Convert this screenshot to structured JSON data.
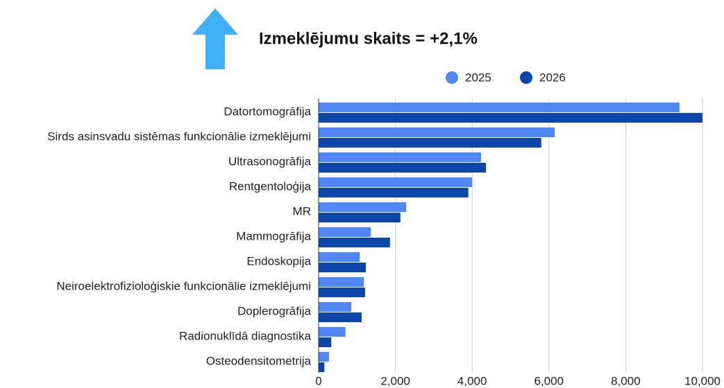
{
  "chart_data": {
    "type": "bar",
    "orientation": "horizontal",
    "title": "Izmeklējumu skaits = +2,1%",
    "categories": [
      "Datortomogrāfija",
      "Sirds asinsvadu sistēmas funkcionālie izmeklējumi",
      "Ultrasonogrāfija",
      "Rentgentoloģija",
      "MR",
      "Mammogrāfija",
      "Endoskopija",
      "Neiroelektrofizioloģiskie funkcionālie izmeklējumi",
      "Doplerogrāfija",
      "Radionuklīdā diagnostika",
      "Osteodensitometrija"
    ],
    "series": [
      {
        "name": "2025",
        "color": "#5086f5",
        "values": [
          9400,
          6150,
          4230,
          4000,
          2280,
          1360,
          1070,
          1180,
          850,
          700,
          270
        ]
      },
      {
        "name": "2026",
        "color": "#0b46aa",
        "values": [
          10000,
          5800,
          4360,
          3900,
          2130,
          1860,
          1230,
          1210,
          1120,
          330,
          150
        ]
      }
    ],
    "xlim": [
      0,
      10000
    ],
    "xticks": [
      0,
      {
        "value": 2000,
        "label": "2,000"
      },
      {
        "value": 4000,
        "label": "4,000"
      },
      {
        "value": 6000,
        "label": "6,000"
      },
      {
        "value": 8000,
        "label": "8,000"
      },
      {
        "value": 10000,
        "label": "10,000"
      }
    ],
    "grid": true,
    "legend": "top"
  }
}
